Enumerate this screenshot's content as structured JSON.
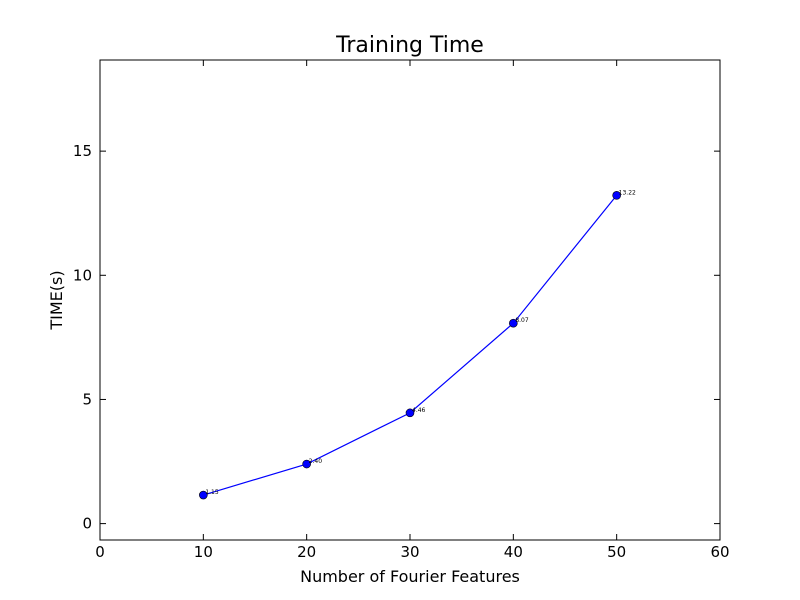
{
  "chart_data": {
    "type": "line",
    "title": "Training Time",
    "xlabel": "Number of Fourier Features",
    "ylabel": "TIME(s)",
    "xlim": [
      0,
      60
    ],
    "ylim": [
      -0.66,
      18.67
    ],
    "xticks": [
      0,
      10,
      20,
      30,
      40,
      50,
      60
    ],
    "yticks": [
      0,
      5,
      10,
      15
    ],
    "grid": false,
    "legend": "none",
    "series": [
      {
        "x": [
          10,
          20,
          30,
          40,
          50
        ],
        "y": [
          1.15,
          2.4,
          4.46,
          8.07,
          13.22
        ],
        "labels": [
          "1.15",
          "2.40",
          "4.46",
          "8.07",
          "13.22"
        ],
        "color": "#0000ff",
        "marker": "circle"
      }
    ]
  }
}
